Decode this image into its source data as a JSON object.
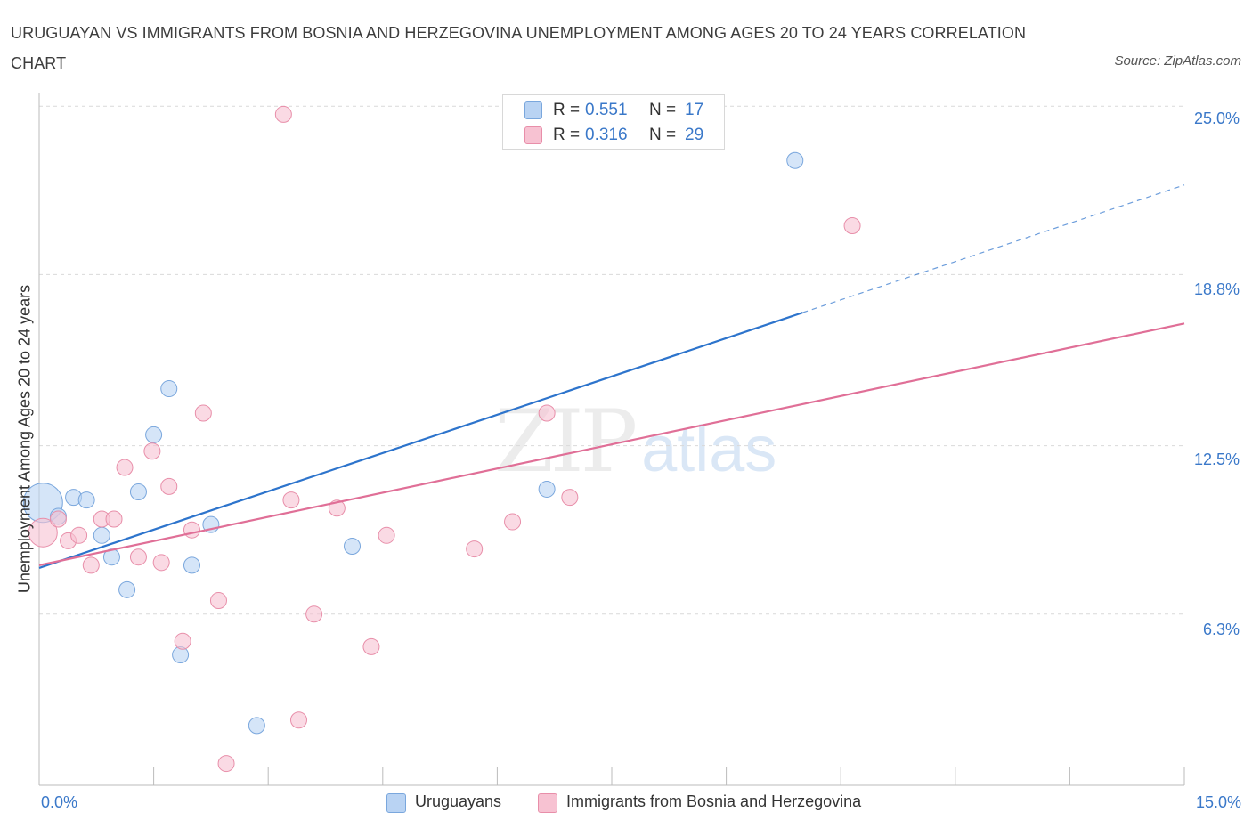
{
  "title": "URUGUAYAN VS IMMIGRANTS FROM BOSNIA AND HERZEGOVINA UNEMPLOYMENT AMONG AGES 20 TO 24 YEARS CORRELATION CHART",
  "source": "Source: ZipAtlas.com",
  "watermark": {
    "zip": "ZIP",
    "atlas": "atlas"
  },
  "legend": {
    "rows": [
      {
        "r_label": "R = ",
        "r_value": "0.551",
        "n_label": "N = ",
        "n_value": "17"
      },
      {
        "r_label": "R = ",
        "r_value": "0.316",
        "n_label": "N = ",
        "n_value": "29"
      }
    ]
  },
  "bottom_legend": [
    "Uruguayans",
    "Immigrants from Bosnia and Herzegovina"
  ],
  "colors": {
    "blue_fill": "#b9d3f3",
    "blue_stroke": "#7aa7dd",
    "blue_line": "#2d74cc",
    "pink_fill": "#f7c2d2",
    "pink_stroke": "#e88ea9",
    "pink_line": "#e06f97",
    "tick_text": "#3a78c9",
    "grid": "#d9d9d9"
  },
  "chart_data": {
    "type": "scatter",
    "title": "URUGUAYAN VS IMMIGRANTS FROM BOSNIA AND HERZEGOVINA UNEMPLOYMENT AMONG AGES 20 TO 24 YEARS CORRELATION CHART",
    "xlabel": "",
    "ylabel": "Unemployment Among Ages 20 to 24 years",
    "xlim": [
      0,
      15
    ],
    "ylim": [
      0,
      25.5
    ],
    "x_tick_labels": [
      "0.0%",
      "15.0%"
    ],
    "y_ticks": [
      6.3,
      12.5,
      18.8,
      25.0
    ],
    "y_tick_labels": [
      "6.3%",
      "12.5%",
      "18.8%",
      "25.0%"
    ],
    "grid": true,
    "series": [
      {
        "name": "Uruguayans",
        "r": 0.551,
        "n": 17,
        "points": [
          {
            "x": 0.05,
            "y": 10.4,
            "size": 22
          },
          {
            "x": 0.25,
            "y": 9.9,
            "size": 9
          },
          {
            "x": 0.45,
            "y": 10.6,
            "size": 9
          },
          {
            "x": 0.62,
            "y": 10.5,
            "size": 9
          },
          {
            "x": 0.82,
            "y": 9.2,
            "size": 9
          },
          {
            "x": 0.95,
            "y": 8.4,
            "size": 9
          },
          {
            "x": 1.15,
            "y": 7.2,
            "size": 9
          },
          {
            "x": 1.3,
            "y": 10.8,
            "size": 9
          },
          {
            "x": 1.5,
            "y": 12.9,
            "size": 9
          },
          {
            "x": 1.7,
            "y": 14.6,
            "size": 9
          },
          {
            "x": 1.85,
            "y": 4.8,
            "size": 9
          },
          {
            "x": 2.0,
            "y": 8.1,
            "size": 9
          },
          {
            "x": 2.25,
            "y": 9.6,
            "size": 9
          },
          {
            "x": 2.85,
            "y": 2.2,
            "size": 9
          },
          {
            "x": 4.1,
            "y": 8.8,
            "size": 9
          },
          {
            "x": 6.65,
            "y": 10.9,
            "size": 9
          },
          {
            "x": 9.9,
            "y": 23.0,
            "size": 9
          }
        ],
        "trend": {
          "x0": 0,
          "y0": 8.0,
          "x1": 10.0,
          "y1": 17.4,
          "dash_to_x": 15,
          "dash_to_y": 22.1
        }
      },
      {
        "name": "Immigrants from Bosnia and Herzegovina",
        "r": 0.316,
        "n": 29,
        "points": [
          {
            "x": 0.05,
            "y": 9.3,
            "size": 16
          },
          {
            "x": 0.25,
            "y": 9.8,
            "size": 9
          },
          {
            "x": 0.38,
            "y": 9.0,
            "size": 9
          },
          {
            "x": 0.52,
            "y": 9.2,
            "size": 9
          },
          {
            "x": 0.68,
            "y": 8.1,
            "size": 9
          },
          {
            "x": 0.82,
            "y": 9.8,
            "size": 9
          },
          {
            "x": 0.98,
            "y": 9.8,
            "size": 9
          },
          {
            "x": 1.12,
            "y": 11.7,
            "size": 9
          },
          {
            "x": 1.3,
            "y": 8.4,
            "size": 9
          },
          {
            "x": 1.48,
            "y": 12.3,
            "size": 9
          },
          {
            "x": 1.6,
            "y": 8.2,
            "size": 9
          },
          {
            "x": 1.7,
            "y": 11.0,
            "size": 9
          },
          {
            "x": 1.88,
            "y": 5.3,
            "size": 9
          },
          {
            "x": 2.0,
            "y": 9.4,
            "size": 9
          },
          {
            "x": 2.15,
            "y": 13.7,
            "size": 9
          },
          {
            "x": 2.35,
            "y": 6.8,
            "size": 9
          },
          {
            "x": 2.45,
            "y": 0.8,
            "size": 9
          },
          {
            "x": 3.2,
            "y": 24.7,
            "size": 9
          },
          {
            "x": 3.3,
            "y": 10.5,
            "size": 9
          },
          {
            "x": 3.4,
            "y": 2.4,
            "size": 9
          },
          {
            "x": 3.6,
            "y": 6.3,
            "size": 9
          },
          {
            "x": 3.9,
            "y": 10.2,
            "size": 9
          },
          {
            "x": 4.35,
            "y": 5.1,
            "size": 9
          },
          {
            "x": 4.55,
            "y": 9.2,
            "size": 9
          },
          {
            "x": 5.7,
            "y": 8.7,
            "size": 9
          },
          {
            "x": 6.2,
            "y": 9.7,
            "size": 9
          },
          {
            "x": 6.65,
            "y": 13.7,
            "size": 9
          },
          {
            "x": 6.95,
            "y": 10.6,
            "size": 9
          },
          {
            "x": 10.65,
            "y": 20.6,
            "size": 9
          }
        ],
        "trend": {
          "x0": 0,
          "y0": 8.1,
          "x1": 15,
          "y1": 17.0
        }
      }
    ]
  }
}
